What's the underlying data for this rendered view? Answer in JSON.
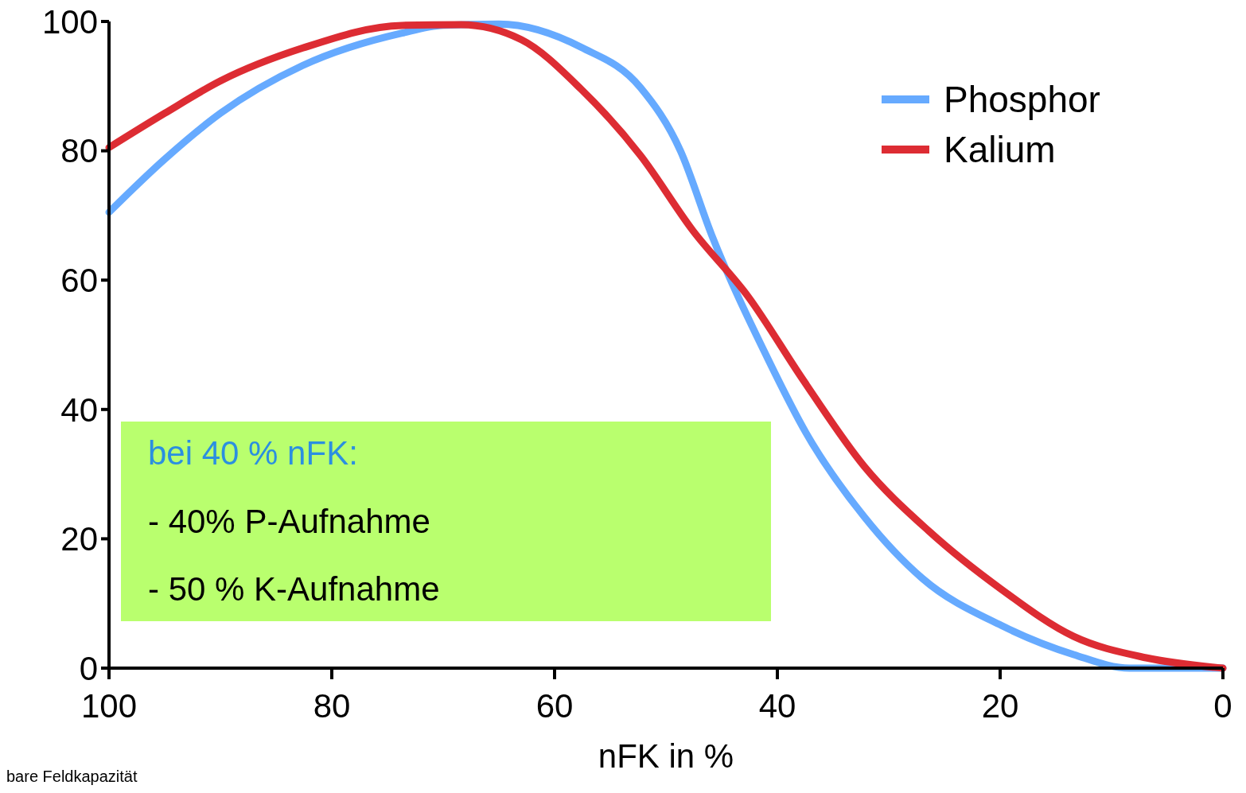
{
  "chart_data": {
    "type": "line",
    "xlabel": "nFK in %",
    "xlim": [
      100,
      0
    ],
    "ylim": [
      0,
      100
    ],
    "xticks": [
      100,
      80,
      60,
      40,
      20,
      0
    ],
    "yticks": [
      0,
      20,
      40,
      60,
      80,
      100
    ],
    "grid": false,
    "legend": "top right",
    "marker": "none",
    "line_style": "solid",
    "series": [
      {
        "name": "Phosphor",
        "color": "#66aaff",
        "x": [
          100,
          95,
          90,
          82.6,
          73.7,
          70,
          65,
          57.6,
          52.3,
          48.7,
          45.9,
          40.9,
          37.4,
          32.2,
          27,
          19.9,
          13.4,
          8.4,
          0
        ],
        "values": [
          70.5,
          78.7,
          85.8,
          93.2,
          98.2,
          99.4,
          99.6,
          96,
          89.8,
          80,
          67,
          48,
          36.3,
          23.4,
          13.9,
          6.6,
          2.1,
          0,
          0
        ]
      },
      {
        "name": "Kalium",
        "color": "#dd2c33",
        "x": [
          100,
          95,
          90,
          82.6,
          73.7,
          68.4,
          63,
          57.6,
          52.3,
          47.6,
          42.6,
          37.7,
          32.2,
          26.4,
          19.9,
          13.4,
          6.9,
          0
        ],
        "values": [
          80.5,
          85.8,
          90.8,
          95.9,
          99.4,
          99.5,
          97.2,
          89.5,
          79.3,
          67.7,
          57.4,
          44.6,
          31.2,
          21.2,
          12.2,
          4.9,
          1.6,
          0
        ]
      }
    ],
    "annotations": [
      "bei 40 % nFK:",
      "- 40% P-Aufnahme",
      "- 50 % K-Aufnahme",
      "bare Feldkapazität"
    ]
  }
}
